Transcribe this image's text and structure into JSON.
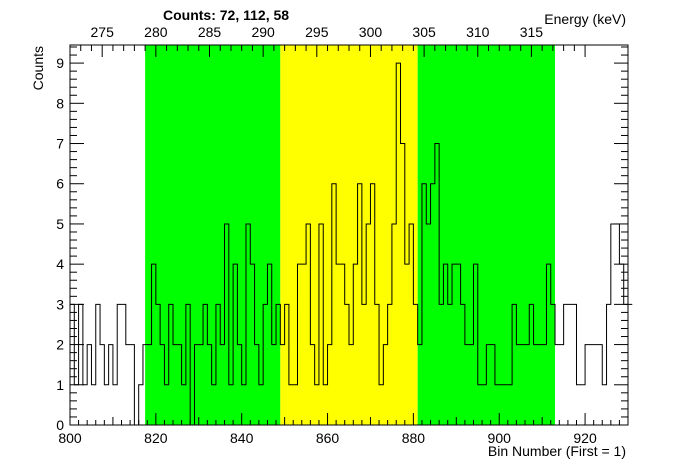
{
  "chart_data": {
    "type": "histogram",
    "title": "Counts:   72,   112,   58",
    "xlabel": "Bin Number (First = 1)",
    "ylabel": "Counts",
    "x2label": "Energy (keV)",
    "xlim": [
      800,
      930
    ],
    "ylim": [
      0,
      9.45
    ],
    "x_ticks": [
      800,
      820,
      840,
      860,
      880,
      900,
      920
    ],
    "y_ticks": [
      0,
      1,
      2,
      3,
      4,
      5,
      6,
      7,
      8,
      9
    ],
    "energy_ticks": [
      275,
      280,
      285,
      290,
      295,
      300,
      305,
      310,
      315
    ],
    "energy_calibration": {
      "bin_at_275keV": 807.5,
      "bins_per_5keV": 12.5
    },
    "regions": [
      {
        "name": "left-background",
        "x_range": [
          817.5,
          849
        ],
        "color": "#00ff00",
        "counts": 72
      },
      {
        "name": "peak",
        "x_range": [
          849,
          881
        ],
        "color": "#ffff00",
        "counts": 112
      },
      {
        "name": "right-background",
        "x_range": [
          881,
          913
        ],
        "color": "#00ff00",
        "counts": 58
      }
    ],
    "bins_start": 800,
    "bin_width": 1,
    "values": [
      3,
      1,
      3,
      1,
      2,
      1,
      3,
      2,
      1,
      2,
      1,
      3,
      3,
      2,
      2,
      0,
      1,
      2,
      2,
      4,
      3,
      2,
      1,
      3,
      2,
      2,
      1,
      3,
      0,
      2,
      2,
      3,
      2,
      1,
      3,
      2,
      5,
      1,
      4,
      2,
      1,
      5,
      4,
      2,
      1,
      3,
      4,
      2,
      3,
      2,
      3,
      1,
      1,
      4,
      4,
      5,
      2,
      1,
      5,
      1,
      2,
      6,
      4,
      4,
      3,
      2,
      4,
      6,
      3,
      5,
      6,
      3,
      1,
      2,
      3,
      5,
      9,
      7,
      4,
      5,
      3,
      2,
      6,
      5,
      6,
      7,
      3,
      4,
      3,
      4,
      4,
      3,
      2,
      2,
      4,
      1,
      1,
      2,
      2,
      1,
      1,
      1,
      1,
      3,
      2,
      2,
      2,
      3,
      2,
      2,
      2,
      4,
      3,
      2,
      2,
      3,
      3,
      3,
      1,
      1,
      2,
      2,
      2,
      2,
      1,
      3,
      5,
      5,
      4,
      3,
      3
    ]
  }
}
